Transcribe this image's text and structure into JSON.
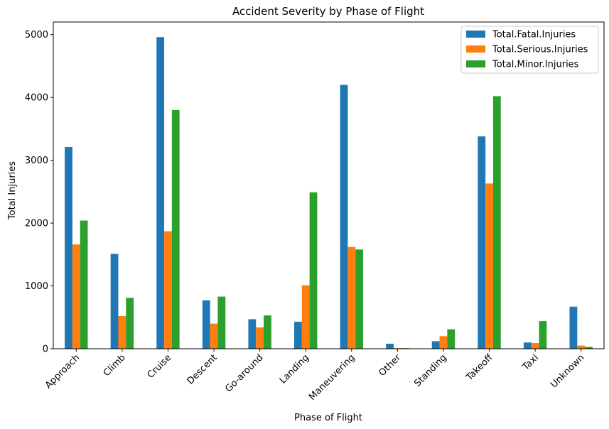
{
  "chart_data": {
    "type": "bar",
    "title": "Accident Severity by Phase of Flight",
    "xlabel": "Phase of Flight",
    "ylabel": "Total Injuries",
    "categories": [
      "Approach",
      "Climb",
      "Cruise",
      "Descent",
      "Go-around",
      "Landing",
      "Maneuvering",
      "Other",
      "Standing",
      "Takeoff",
      "Taxi",
      "Unknown"
    ],
    "series": [
      {
        "name": "Total.Fatal.Injuries",
        "color": "#1f77b4",
        "values": [
          3210,
          1510,
          4960,
          770,
          470,
          430,
          4200,
          80,
          120,
          3380,
          100,
          670
        ]
      },
      {
        "name": "Total.Serious.Injuries",
        "color": "#ff7f0e",
        "values": [
          1660,
          520,
          1870,
          400,
          340,
          1010,
          1620,
          10,
          200,
          2630,
          90,
          50
        ]
      },
      {
        "name": "Total.Minor.Injuries",
        "color": "#2ca02c",
        "values": [
          2040,
          810,
          3800,
          830,
          530,
          2490,
          1580,
          10,
          310,
          4020,
          440,
          30
        ]
      }
    ],
    "ylim": [
      0,
      5200
    ],
    "yticks": [
      0,
      1000,
      2000,
      3000,
      4000,
      5000
    ],
    "grid": false,
    "legend_position": "top-right"
  }
}
